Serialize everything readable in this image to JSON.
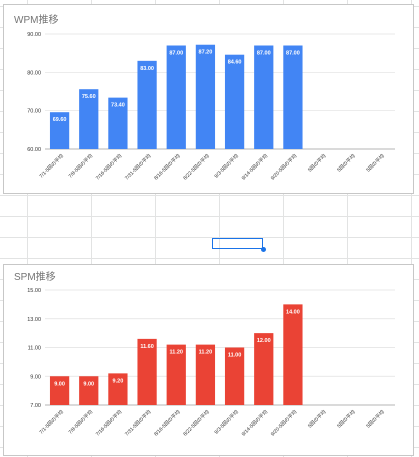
{
  "chart_data": [
    {
      "type": "bar",
      "title": "WPM推移",
      "categories": [
        "7/1-5回の平均",
        "7/8-5回の平均",
        "7/16-5回の平均",
        "7/31-5回の平均",
        "8/16-5回の平均",
        "8/22-5回の平均",
        "9/3-5回の平均",
        "9/14-5回の平均",
        "9/20-5回の平均",
        "5回の平均",
        "5回の平均",
        "5回の平均"
      ],
      "values": [
        69.6,
        75.6,
        73.4,
        83.0,
        87.0,
        87.2,
        84.6,
        87.0,
        87.0,
        null,
        null,
        null
      ],
      "value_labels": [
        "69.60",
        "75.60",
        "73.40",
        "83.00",
        "87.00",
        "87.20",
        "84.60",
        "87.00",
        "87.00",
        "",
        "",
        ""
      ],
      "ylim": [
        60,
        90
      ],
      "yticks": [
        "60.00",
        "70.00",
        "80.00",
        "90.00"
      ],
      "ytick_values": [
        60,
        70,
        80,
        90
      ],
      "color": "#4285f4",
      "grid": true
    },
    {
      "type": "bar",
      "title": "SPM推移",
      "categories": [
        "7/1-5回の平均",
        "7/8-5回の平均",
        "7/16-5回の平均",
        "7/31-5回の平均",
        "8/16-5回の平均",
        "8/22-5回の平均",
        "9/3-5回の平均",
        "9/14-5回の平均",
        "9/20-5回の平均",
        "5回の平均",
        "5回の平均",
        "5回の平均"
      ],
      "values": [
        9.0,
        9.0,
        9.2,
        11.6,
        11.2,
        11.2,
        11.0,
        12.0,
        14.0,
        null,
        null,
        null
      ],
      "value_labels": [
        "9.00",
        "9.00",
        "9.20",
        "11.60",
        "11.20",
        "11.20",
        "11.00",
        "12.00",
        "14.00",
        "",
        "",
        ""
      ],
      "ylim": [
        7,
        15
      ],
      "yticks": [
        "7.00",
        "9.00",
        "11.00",
        "13.00",
        "15.00"
      ],
      "ytick_values": [
        7,
        9,
        11,
        13,
        15
      ],
      "color": "#ea4335",
      "grid": true
    }
  ]
}
